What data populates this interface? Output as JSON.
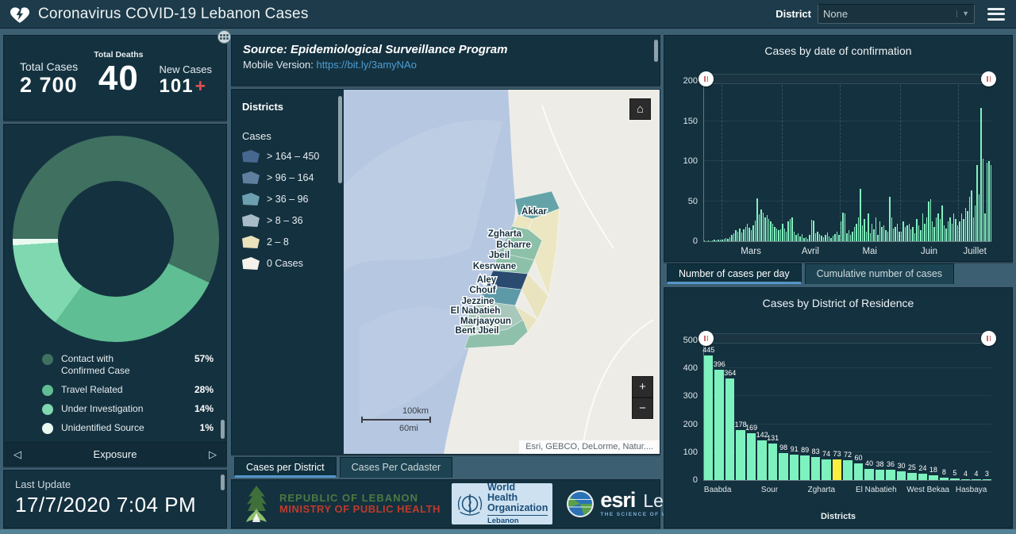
{
  "header": {
    "title": "Coronavirus COVID-19 Lebanon Cases",
    "district_label": "District",
    "district_value": "None"
  },
  "stats": {
    "total_cases_label": "Total Cases",
    "total_cases_value": "2 700",
    "total_deaths_label": "Total Deaths",
    "total_deaths_value": "40",
    "new_cases_label": "New Cases",
    "new_cases_value": "101",
    "new_cases_suffix": "+"
  },
  "exposure_panel": {
    "footer_label": "Exposure",
    "arrow_left": "◁",
    "arrow_right": "▷",
    "legend": [
      {
        "label": "Contact with Confirmed Case",
        "value": "57%",
        "color": "#3f7060"
      },
      {
        "label": "Travel Related",
        "value": "28%",
        "color": "#5fbe93"
      },
      {
        "label": "Under Investigation",
        "value": "14%",
        "color": "#7fd8af"
      },
      {
        "label": "Unidentified Source",
        "value": "1%",
        "color": "#eafaf1"
      }
    ]
  },
  "last_update": {
    "label": "Last Update",
    "value": "17/7/2020 7:04 PM"
  },
  "source_panel": {
    "source_text": "Source: Epidemiological Surveillance Program",
    "mobile_label": "Mobile Version:",
    "mobile_link": "https://bit.ly/3amyNAo"
  },
  "map": {
    "legend_title": "Districts",
    "legend_subtitle": "Cases",
    "classes": [
      {
        "label": "> 164 – 450",
        "color": "#46688f"
      },
      {
        "label": "> 96 – 164",
        "color": "#5e7f9e"
      },
      {
        "label": "> 36 – 96",
        "color": "#6c9fb0"
      },
      {
        "label": "> 8 – 36",
        "color": "#a7bcc7"
      },
      {
        "label": "2 – 8",
        "color": "#e9e2ba"
      },
      {
        "label": "0 Cases",
        "color": "#f4f2ea"
      }
    ],
    "place_labels": [
      "Akkar",
      "Zgharta",
      "Bcharre",
      "Jbeil",
      "Kesrwane",
      "Aley",
      "Chouf",
      "Jezzine",
      "El Nabatieh",
      "Marjaayoun",
      "Bent Jbeil"
    ],
    "scale_km": "100km",
    "scale_mi": "60mi",
    "attribution": "Esri, GEBCO, DeLorme, Natur....",
    "home_glyph": "⌂",
    "zoom_in_glyph": "+",
    "zoom_out_glyph": "−",
    "tabs": [
      {
        "label": "Cases per District",
        "active": true
      },
      {
        "label": "Cases Per Cadaster",
        "active": false
      }
    ]
  },
  "footer_logos": {
    "moph_line1": "REPUBLIC OF LEBANON",
    "moph_line2": "MINISTRY OF PUBLIC HEALTH",
    "who_line1": "World Health",
    "who_line2": "Organization",
    "who_sub": "Lebanon",
    "esri_name": "esri",
    "esri_region": "Lebanon",
    "esri_tagline": "THE SCIENCE OF WHERE"
  },
  "daily_tabs": [
    {
      "label": "Number of cases per day",
      "active": true
    },
    {
      "label": "Cumulative number of cases",
      "active": false
    }
  ],
  "chart_data": [
    {
      "id": "exposure_donut",
      "type": "pie",
      "title": "Exposure",
      "labels": [
        "Contact with Confirmed Case",
        "Travel Related",
        "Under Investigation",
        "Unidentified Source"
      ],
      "values": [
        57,
        28,
        14,
        1
      ],
      "colors": [
        "#3f7060",
        "#5fbe93",
        "#7fd8af",
        "#eafaf1"
      ],
      "donut": true,
      "start_angle_deg": 270
    },
    {
      "id": "cases_by_date",
      "type": "bar",
      "title": "Cases by  date of confirmation",
      "ylim": [
        0,
        200
      ],
      "yticks": [
        0,
        50,
        100,
        150,
        200
      ],
      "bar_color": "#82f0bf",
      "legend_position": "none",
      "grid": "vertical-dashed",
      "months": [
        {
          "label": "Mars",
          "start": 9
        },
        {
          "label": "Avril",
          "start": 40
        },
        {
          "label": "Mai",
          "start": 70
        },
        {
          "label": "Juin",
          "start": 101
        },
        {
          "label": "Juillet",
          "start": 131
        }
      ],
      "total_points": 148,
      "values": [
        1,
        0,
        1,
        0,
        1,
        2,
        1,
        2,
        2,
        2,
        3,
        4,
        3,
        5,
        8,
        10,
        14,
        12,
        16,
        11,
        15,
        18,
        22,
        17,
        14,
        20,
        26,
        53,
        34,
        40,
        36,
        30,
        33,
        28,
        25,
        22,
        18,
        16,
        14,
        15,
        22,
        16,
        12,
        25,
        28,
        30,
        12,
        8,
        10,
        6,
        9,
        4,
        5,
        3,
        8,
        27,
        26,
        10,
        12,
        9,
        7,
        5,
        8,
        11,
        6,
        4,
        7,
        9,
        12,
        8,
        25,
        36,
        35,
        10,
        14,
        8,
        12,
        18,
        22,
        30,
        65,
        20,
        28,
        12,
        35,
        10,
        22,
        15,
        30,
        8,
        25,
        18,
        20,
        14,
        12,
        55,
        30,
        16,
        18,
        22,
        12,
        12,
        25,
        18,
        20,
        22,
        15,
        18,
        10,
        28,
        20,
        14,
        35,
        22,
        30,
        50,
        52,
        25,
        18,
        30,
        35,
        28,
        45,
        20,
        16,
        25,
        30,
        22,
        35,
        28,
        20,
        25,
        35,
        28,
        42,
        38,
        55,
        63,
        30,
        45,
        95,
        58,
        166,
        103,
        35,
        98,
        100,
        95
      ]
    },
    {
      "id": "cases_by_district",
      "type": "bar",
      "title": "Cases by District of Residence",
      "xlabel": "Districts",
      "ylim": [
        0,
        500
      ],
      "yticks": [
        0,
        100,
        200,
        300,
        400,
        500
      ],
      "bar_color": "#7df2be",
      "highlight_index": 12,
      "highlight_color": "#f8ef3f",
      "values": [
        445,
        396,
        364,
        178,
        169,
        142,
        131,
        98,
        91,
        89,
        83,
        74,
        73,
        72,
        60,
        40,
        38,
        36,
        30,
        25,
        24,
        18,
        8,
        5,
        4,
        4,
        3
      ],
      "x_tick_labels": [
        "Baabda",
        "Sour",
        "Zgharta",
        "El Nabatieh",
        "West Bekaa",
        "Hasbaya"
      ]
    }
  ]
}
